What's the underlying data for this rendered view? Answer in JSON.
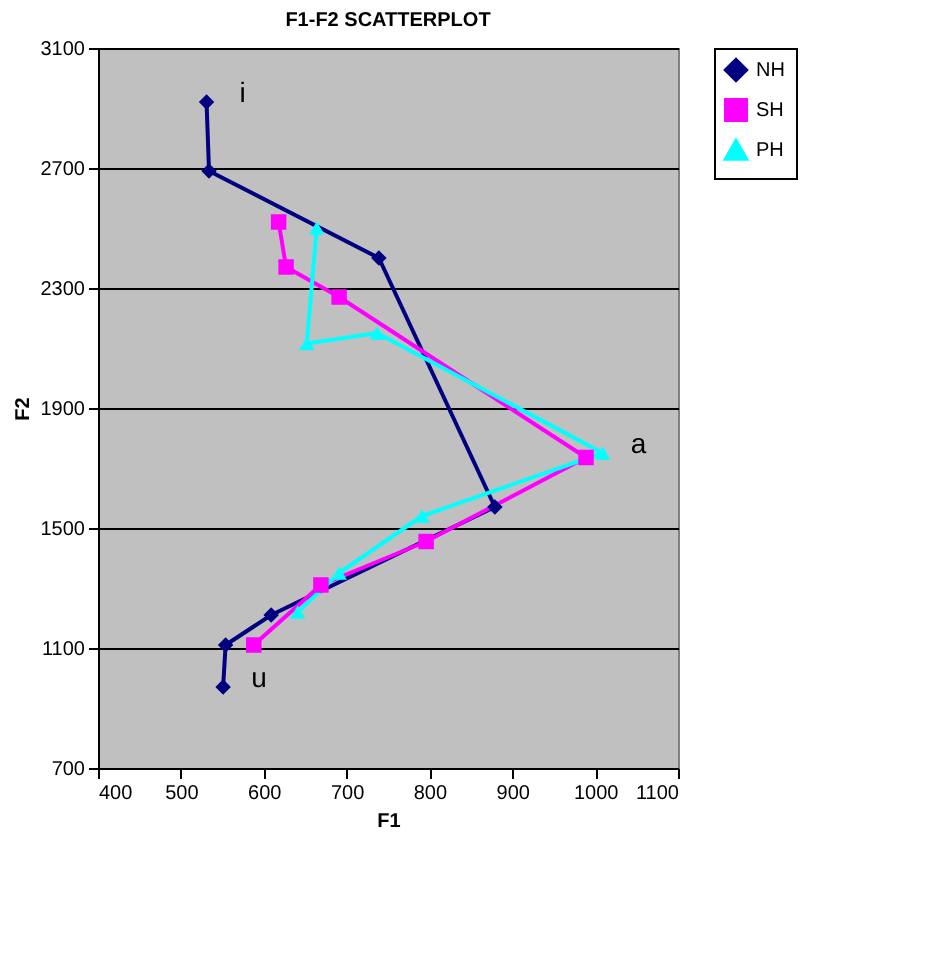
{
  "chart_data": {
    "type": "line",
    "title": "F1-F2 SCATTERPLOT",
    "xlabel": "F1",
    "ylabel": "F2",
    "xlim": [
      400,
      1100
    ],
    "xticks": [
      400,
      500,
      600,
      700,
      800,
      900,
      1000,
      1100
    ],
    "ylim": [
      700,
      3100
    ],
    "yticks": [
      700,
      1100,
      1500,
      1900,
      2300,
      2700,
      3100
    ],
    "grid": "y",
    "legend": "right",
    "series": [
      {
        "name": "NH",
        "color": "#000080",
        "marker": "diamond",
        "x": [
          531,
          534,
          739,
          879,
          609,
          554,
          551
        ],
        "values": [
          2920,
          2690,
          2400,
          1570,
          1210,
          1110,
          970
        ]
      },
      {
        "name": "SH",
        "color": "#ff00ff",
        "marker": "square",
        "x": [
          618,
          627,
          691,
          989,
          796,
          669,
          588
        ],
        "values": [
          2520,
          2370,
          2270,
          1735,
          1455,
          1310,
          1110
        ]
      },
      {
        "name": "PH",
        "color": "#00ffff",
        "marker": "triangle",
        "x": [
          664,
          652,
          737,
          1009,
          791,
          691,
          641
        ],
        "values": [
          2500,
          2115,
          2150,
          1750,
          1540,
          1350,
          1220
        ]
      }
    ],
    "annotations": [
      {
        "text": "i",
        "x": 531,
        "y": 2920
      },
      {
        "text": "a",
        "x": 1009,
        "y": 1750
      },
      {
        "text": "u",
        "x": 551,
        "y": 970
      }
    ]
  }
}
